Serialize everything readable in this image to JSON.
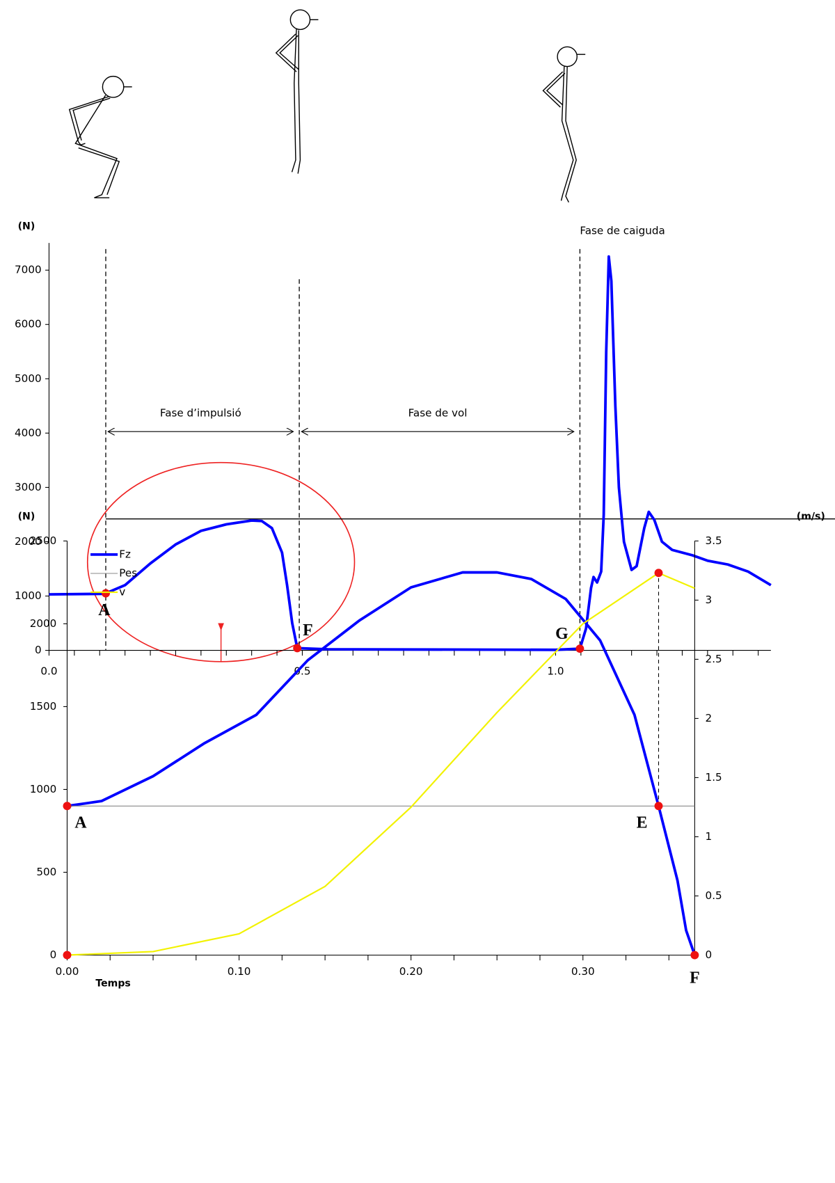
{
  "chart_data": [
    {
      "type": "line",
      "y_title": "(N)",
      "xlim": [
        0,
        1.425
      ],
      "ylim": [
        0,
        7500
      ],
      "xticks": [
        {
          "value": 0,
          "label": "0.0"
        },
        0.5,
        {
          "value": 1,
          "label": "1.0"
        }
      ],
      "xminorticks": [
        0.05,
        0.1,
        0.15,
        0.2,
        0.25,
        0.3,
        0.35,
        0.4,
        0.45,
        0.55,
        0.6,
        0.65,
        0.7,
        0.75,
        0.8,
        0.85,
        0.9,
        0.95,
        1.05,
        1.1,
        1.15,
        1.2,
        1.25,
        1.3,
        1.35,
        1.4
      ],
      "yticks": [
        0,
        1000,
        2000,
        3000,
        4000,
        5000,
        6000,
        7000
      ],
      "series": [
        {
          "color": "#0000ff",
          "x": [
            0,
            0.11,
            0.112,
            0.15,
            0.2,
            0.25,
            0.3,
            0.35,
            0.4,
            0.42,
            0.44,
            0.46,
            0.47,
            0.48,
            0.49,
            0.55,
            1.0,
            1.048,
            1.06,
            1.07,
            1.075,
            1.082,
            1.09,
            1.095,
            1.1,
            1.105,
            1.11,
            1.118,
            1.125,
            1.135,
            1.15,
            1.16,
            1.175,
            1.184,
            1.195,
            1.21,
            1.23,
            1.27,
            1.3,
            1.34,
            1.38,
            1.425
          ],
          "values": [
            1030,
            1040,
            1050,
            1200,
            1600,
            1950,
            2200,
            2320,
            2390,
            2380,
            2250,
            1800,
            1200,
            500,
            40,
            20,
            10,
            30,
            400,
            1150,
            1350,
            1250,
            1450,
            2500,
            5500,
            7250,
            6800,
            4500,
            3000,
            2000,
            1480,
            1550,
            2250,
            2550,
            2400,
            2000,
            1850,
            1750,
            1650,
            1580,
            1450,
            1200
          ]
        }
      ],
      "reference_line": 2420,
      "markers": [
        0.112,
        0.494,
        1.048
      ],
      "phases": [
        {
          "label": "Fase d’impulsió",
          "from": 0.112,
          "to": 0.494
        },
        {
          "label": "Fase de vol",
          "from": 0.494,
          "to": 1.048
        },
        {
          "label": "Fase de caiguda",
          "from": 1.048
        }
      ],
      "points": [
        {
          "label": "A",
          "x": 0.112,
          "y": 1050
        },
        {
          "label": "F",
          "x": 0.49,
          "y": 40
        },
        {
          "label": "G",
          "x": 1.048,
          "y": 30
        }
      ]
    },
    {
      "type": "line",
      "y_title": "(N)",
      "y2_title": "(m/s)",
      "x_title": "Temps",
      "xlim": [
        0,
        0.365
      ],
      "ylim": [
        0,
        2500
      ],
      "y2lim": [
        0,
        3.5
      ],
      "xticks": [
        {
          "value": 0,
          "label": "0.00"
        },
        {
          "value": 0.1,
          "label": "0.10"
        },
        {
          "value": 0.2,
          "label": "0.20"
        },
        {
          "value": 0.3,
          "label": "0.30"
        }
      ],
      "xminorticks": [
        0.025,
        0.05,
        0.075,
        0.125,
        0.15,
        0.175,
        0.225,
        0.25,
        0.275,
        0.325,
        0.35
      ],
      "yticks": [
        0,
        500,
        1000,
        1500,
        2000,
        2500
      ],
      "y2ticks": [
        0,
        0.5,
        1,
        1.5,
        2,
        2.5,
        3,
        3.5
      ],
      "series": [
        {
          "name": "Fz",
          "color": "#0000ff",
          "x": [
            0,
            0.02,
            0.05,
            0.08,
            0.11,
            0.14,
            0.17,
            0.2,
            0.23,
            0.25,
            0.27,
            0.29,
            0.31,
            0.33,
            0.344,
            0.355,
            0.36,
            0.365
          ],
          "values": [
            900,
            930,
            1080,
            1280,
            1450,
            1780,
            2020,
            2220,
            2310,
            2310,
            2270,
            2150,
            1900,
            1450,
            900,
            450,
            150,
            0
          ]
        },
        {
          "name": "Pes",
          "color": "#888888",
          "x": [
            0,
            0.365
          ],
          "values": [
            900,
            900
          ]
        },
        {
          "name": "v",
          "color": "#f2f200",
          "axis": "y2",
          "x": [
            0,
            0.05,
            0.1,
            0.15,
            0.2,
            0.25,
            0.3,
            0.344,
            0.365
          ],
          "values": [
            0,
            0.03,
            0.18,
            0.58,
            1.25,
            2.05,
            2.8,
            3.23,
            3.1
          ]
        }
      ],
      "points": [
        {
          "label": "A",
          "x": 0,
          "y": 900
        },
        {
          "label": "E",
          "x": 0.344,
          "y": 900
        },
        {
          "label": "F",
          "x": 0.365,
          "y": 0
        },
        {
          "label": null,
          "x": 0.344,
          "y": 3.23,
          "axis": "y2"
        },
        {
          "label": null,
          "x": 0,
          "y": 0,
          "axis": "y2"
        }
      ]
    }
  ]
}
